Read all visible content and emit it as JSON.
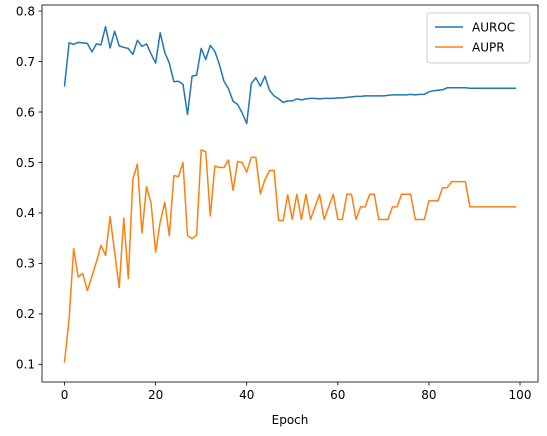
{
  "chart_data": {
    "type": "line",
    "title": "",
    "xlabel": "Epoch",
    "ylabel": "",
    "xlim": [
      -4.95,
      103.95
    ],
    "ylim": [
      0.065,
      0.812
    ],
    "xticks": [
      0,
      20,
      40,
      60,
      80,
      100
    ],
    "yticks": [
      0.1,
      0.2,
      0.3,
      0.4,
      0.5,
      0.6,
      0.7,
      0.8
    ],
    "grid": false,
    "legend_position": "top-right",
    "series": [
      {
        "name": "AUROC",
        "color": "#1f77b4",
        "x": [
          0,
          1,
          2,
          3,
          4,
          5,
          6,
          7,
          8,
          9,
          10,
          11,
          12,
          13,
          14,
          15,
          16,
          17,
          18,
          19,
          20,
          21,
          22,
          23,
          24,
          25,
          26,
          27,
          28,
          29,
          30,
          31,
          32,
          33,
          34,
          35,
          36,
          37,
          38,
          39,
          40,
          41,
          42,
          43,
          44,
          45,
          46,
          47,
          48,
          49,
          50,
          51,
          52,
          53,
          54,
          55,
          56,
          57,
          58,
          59,
          60,
          61,
          62,
          63,
          64,
          65,
          66,
          67,
          68,
          69,
          70,
          71,
          72,
          73,
          74,
          75,
          76,
          77,
          78,
          79,
          80,
          81,
          82,
          83,
          84,
          85,
          86,
          87,
          88,
          89,
          90,
          91,
          92,
          93,
          94,
          95,
          96,
          97,
          98,
          99
        ],
        "values": [
          0.652,
          0.737,
          0.734,
          0.738,
          0.737,
          0.736,
          0.719,
          0.735,
          0.733,
          0.769,
          0.727,
          0.76,
          0.731,
          0.728,
          0.726,
          0.714,
          0.742,
          0.73,
          0.735,
          0.715,
          0.697,
          0.757,
          0.718,
          0.697,
          0.66,
          0.661,
          0.655,
          0.595,
          0.671,
          0.673,
          0.726,
          0.704,
          0.732,
          0.72,
          0.694,
          0.661,
          0.646,
          0.621,
          0.615,
          0.598,
          0.577,
          0.656,
          0.668,
          0.651,
          0.671,
          0.643,
          0.632,
          0.626,
          0.619,
          0.622,
          0.622,
          0.626,
          0.624,
          0.626,
          0.627,
          0.627,
          0.626,
          0.627,
          0.627,
          0.627,
          0.628,
          0.628,
          0.629,
          0.63,
          0.631,
          0.631,
          0.632,
          0.632,
          0.632,
          0.632,
          0.632,
          0.633,
          0.634,
          0.634,
          0.634,
          0.634,
          0.635,
          0.634,
          0.635,
          0.635,
          0.64,
          0.642,
          0.643,
          0.644,
          0.648,
          0.648,
          0.648,
          0.648,
          0.648,
          0.647,
          0.647,
          0.647,
          0.647,
          0.647,
          0.647,
          0.647,
          0.647,
          0.647,
          0.647,
          0.647
        ]
      },
      {
        "name": "AUPR",
        "color": "#ff7f0e",
        "x": [
          0,
          1,
          2,
          3,
          4,
          5,
          6,
          7,
          8,
          9,
          10,
          11,
          12,
          13,
          14,
          15,
          16,
          17,
          18,
          19,
          20,
          21,
          22,
          23,
          24,
          25,
          26,
          27,
          28,
          29,
          30,
          31,
          32,
          33,
          34,
          35,
          36,
          37,
          38,
          39,
          40,
          41,
          42,
          43,
          44,
          45,
          46,
          47,
          48,
          49,
          50,
          51,
          52,
          53,
          54,
          55,
          56,
          57,
          58,
          59,
          60,
          61,
          62,
          63,
          64,
          65,
          66,
          67,
          68,
          69,
          70,
          71,
          72,
          73,
          74,
          75,
          76,
          77,
          78,
          79,
          80,
          81,
          82,
          83,
          84,
          85,
          86,
          87,
          88,
          89,
          90,
          91,
          92,
          93,
          94,
          95,
          96,
          97,
          98,
          99
        ],
        "values": [
          0.105,
          0.19,
          0.329,
          0.273,
          0.28,
          0.246,
          0.274,
          0.303,
          0.336,
          0.316,
          0.393,
          0.322,
          0.252,
          0.39,
          0.27,
          0.467,
          0.497,
          0.36,
          0.452,
          0.419,
          0.322,
          0.382,
          0.421,
          0.355,
          0.474,
          0.472,
          0.5,
          0.355,
          0.349,
          0.356,
          0.525,
          0.521,
          0.394,
          0.493,
          0.49,
          0.49,
          0.505,
          0.445,
          0.502,
          0.5,
          0.481,
          0.51,
          0.51,
          0.438,
          0.466,
          0.484,
          0.484,
          0.385,
          0.385,
          0.436,
          0.387,
          0.437,
          0.387,
          0.437,
          0.387,
          0.412,
          0.437,
          0.387,
          0.412,
          0.437,
          0.387,
          0.387,
          0.437,
          0.437,
          0.387,
          0.412,
          0.412,
          0.437,
          0.437,
          0.387,
          0.387,
          0.387,
          0.412,
          0.412,
          0.437,
          0.437,
          0.437,
          0.387,
          0.387,
          0.387,
          0.424,
          0.424,
          0.424,
          0.45,
          0.45,
          0.462,
          0.462,
          0.462,
          0.462,
          0.412,
          0.412,
          0.412,
          0.412,
          0.412,
          0.412,
          0.412,
          0.412,
          0.412,
          0.412,
          0.412
        ]
      }
    ]
  }
}
